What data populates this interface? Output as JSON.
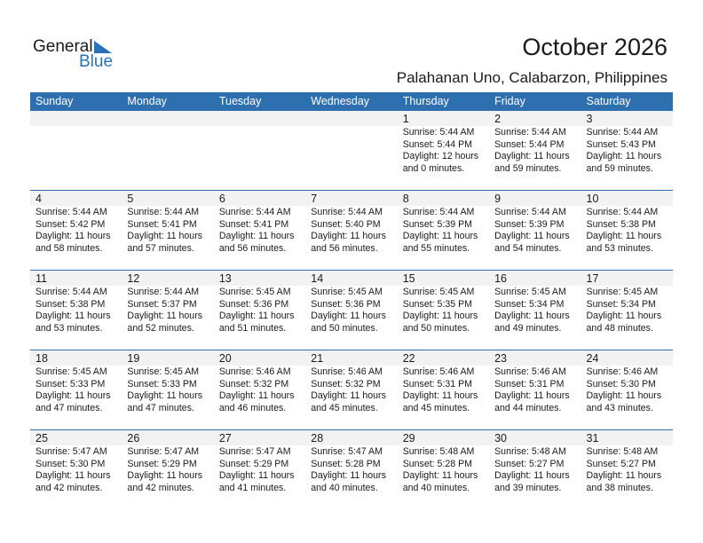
{
  "logo": {
    "line1": "General",
    "line2": "Blue"
  },
  "title": "October 2026",
  "location": "Palahanan Uno, Calabarzon, Philippines",
  "colors": {
    "accent": "#2e6fb0",
    "band": "#f2f2f2"
  },
  "weekdays": [
    "Sunday",
    "Monday",
    "Tuesday",
    "Wednesday",
    "Thursday",
    "Friday",
    "Saturday"
  ],
  "weeks": [
    [
      null,
      null,
      null,
      null,
      {
        "day": "1",
        "sunrise": "Sunrise: 5:44 AM",
        "sunset": "Sunset: 5:44 PM",
        "daylight": "Daylight: 12 hours",
        "minutes": "and 0 minutes."
      },
      {
        "day": "2",
        "sunrise": "Sunrise: 5:44 AM",
        "sunset": "Sunset: 5:44 PM",
        "daylight": "Daylight: 11 hours",
        "minutes": "and 59 minutes."
      },
      {
        "day": "3",
        "sunrise": "Sunrise: 5:44 AM",
        "sunset": "Sunset: 5:43 PM",
        "daylight": "Daylight: 11 hours",
        "minutes": "and 59 minutes."
      }
    ],
    [
      {
        "day": "4",
        "sunrise": "Sunrise: 5:44 AM",
        "sunset": "Sunset: 5:42 PM",
        "daylight": "Daylight: 11 hours",
        "minutes": "and 58 minutes."
      },
      {
        "day": "5",
        "sunrise": "Sunrise: 5:44 AM",
        "sunset": "Sunset: 5:41 PM",
        "daylight": "Daylight: 11 hours",
        "minutes": "and 57 minutes."
      },
      {
        "day": "6",
        "sunrise": "Sunrise: 5:44 AM",
        "sunset": "Sunset: 5:41 PM",
        "daylight": "Daylight: 11 hours",
        "minutes": "and 56 minutes."
      },
      {
        "day": "7",
        "sunrise": "Sunrise: 5:44 AM",
        "sunset": "Sunset: 5:40 PM",
        "daylight": "Daylight: 11 hours",
        "minutes": "and 56 minutes."
      },
      {
        "day": "8",
        "sunrise": "Sunrise: 5:44 AM",
        "sunset": "Sunset: 5:39 PM",
        "daylight": "Daylight: 11 hours",
        "minutes": "and 55 minutes."
      },
      {
        "day": "9",
        "sunrise": "Sunrise: 5:44 AM",
        "sunset": "Sunset: 5:39 PM",
        "daylight": "Daylight: 11 hours",
        "minutes": "and 54 minutes."
      },
      {
        "day": "10",
        "sunrise": "Sunrise: 5:44 AM",
        "sunset": "Sunset: 5:38 PM",
        "daylight": "Daylight: 11 hours",
        "minutes": "and 53 minutes."
      }
    ],
    [
      {
        "day": "11",
        "sunrise": "Sunrise: 5:44 AM",
        "sunset": "Sunset: 5:38 PM",
        "daylight": "Daylight: 11 hours",
        "minutes": "and 53 minutes."
      },
      {
        "day": "12",
        "sunrise": "Sunrise: 5:44 AM",
        "sunset": "Sunset: 5:37 PM",
        "daylight": "Daylight: 11 hours",
        "minutes": "and 52 minutes."
      },
      {
        "day": "13",
        "sunrise": "Sunrise: 5:45 AM",
        "sunset": "Sunset: 5:36 PM",
        "daylight": "Daylight: 11 hours",
        "minutes": "and 51 minutes."
      },
      {
        "day": "14",
        "sunrise": "Sunrise: 5:45 AM",
        "sunset": "Sunset: 5:36 PM",
        "daylight": "Daylight: 11 hours",
        "minutes": "and 50 minutes."
      },
      {
        "day": "15",
        "sunrise": "Sunrise: 5:45 AM",
        "sunset": "Sunset: 5:35 PM",
        "daylight": "Daylight: 11 hours",
        "minutes": "and 50 minutes."
      },
      {
        "day": "16",
        "sunrise": "Sunrise: 5:45 AM",
        "sunset": "Sunset: 5:34 PM",
        "daylight": "Daylight: 11 hours",
        "minutes": "and 49 minutes."
      },
      {
        "day": "17",
        "sunrise": "Sunrise: 5:45 AM",
        "sunset": "Sunset: 5:34 PM",
        "daylight": "Daylight: 11 hours",
        "minutes": "and 48 minutes."
      }
    ],
    [
      {
        "day": "18",
        "sunrise": "Sunrise: 5:45 AM",
        "sunset": "Sunset: 5:33 PM",
        "daylight": "Daylight: 11 hours",
        "minutes": "and 47 minutes."
      },
      {
        "day": "19",
        "sunrise": "Sunrise: 5:45 AM",
        "sunset": "Sunset: 5:33 PM",
        "daylight": "Daylight: 11 hours",
        "minutes": "and 47 minutes."
      },
      {
        "day": "20",
        "sunrise": "Sunrise: 5:46 AM",
        "sunset": "Sunset: 5:32 PM",
        "daylight": "Daylight: 11 hours",
        "minutes": "and 46 minutes."
      },
      {
        "day": "21",
        "sunrise": "Sunrise: 5:46 AM",
        "sunset": "Sunset: 5:32 PM",
        "daylight": "Daylight: 11 hours",
        "minutes": "and 45 minutes."
      },
      {
        "day": "22",
        "sunrise": "Sunrise: 5:46 AM",
        "sunset": "Sunset: 5:31 PM",
        "daylight": "Daylight: 11 hours",
        "minutes": "and 45 minutes."
      },
      {
        "day": "23",
        "sunrise": "Sunrise: 5:46 AM",
        "sunset": "Sunset: 5:31 PM",
        "daylight": "Daylight: 11 hours",
        "minutes": "and 44 minutes."
      },
      {
        "day": "24",
        "sunrise": "Sunrise: 5:46 AM",
        "sunset": "Sunset: 5:30 PM",
        "daylight": "Daylight: 11 hours",
        "minutes": "and 43 minutes."
      }
    ],
    [
      {
        "day": "25",
        "sunrise": "Sunrise: 5:47 AM",
        "sunset": "Sunset: 5:30 PM",
        "daylight": "Daylight: 11 hours",
        "minutes": "and 42 minutes."
      },
      {
        "day": "26",
        "sunrise": "Sunrise: 5:47 AM",
        "sunset": "Sunset: 5:29 PM",
        "daylight": "Daylight: 11 hours",
        "minutes": "and 42 minutes."
      },
      {
        "day": "27",
        "sunrise": "Sunrise: 5:47 AM",
        "sunset": "Sunset: 5:29 PM",
        "daylight": "Daylight: 11 hours",
        "minutes": "and 41 minutes."
      },
      {
        "day": "28",
        "sunrise": "Sunrise: 5:47 AM",
        "sunset": "Sunset: 5:28 PM",
        "daylight": "Daylight: 11 hours",
        "minutes": "and 40 minutes."
      },
      {
        "day": "29",
        "sunrise": "Sunrise: 5:48 AM",
        "sunset": "Sunset: 5:28 PM",
        "daylight": "Daylight: 11 hours",
        "minutes": "and 40 minutes."
      },
      {
        "day": "30",
        "sunrise": "Sunrise: 5:48 AM",
        "sunset": "Sunset: 5:27 PM",
        "daylight": "Daylight: 11 hours",
        "minutes": "and 39 minutes."
      },
      {
        "day": "31",
        "sunrise": "Sunrise: 5:48 AM",
        "sunset": "Sunset: 5:27 PM",
        "daylight": "Daylight: 11 hours",
        "minutes": "and 38 minutes."
      }
    ]
  ]
}
